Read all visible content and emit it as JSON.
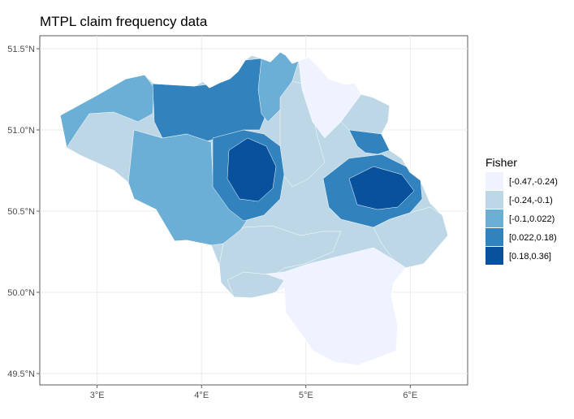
{
  "title": "MTPL claim frequency data",
  "axes": {
    "lon_range": [
      2.45,
      6.55
    ],
    "lat_range": [
      49.43,
      51.58
    ],
    "x_ticks": [
      {
        "value": 3,
        "label": "3°E"
      },
      {
        "value": 4,
        "label": "4°E"
      },
      {
        "value": 5,
        "label": "5°E"
      },
      {
        "value": 6,
        "label": "6°E"
      }
    ],
    "y_ticks": [
      {
        "value": 51.5,
        "label": "51.5°N"
      },
      {
        "value": 51.0,
        "label": "51.0°N"
      },
      {
        "value": 50.5,
        "label": "50.5°N"
      },
      {
        "value": 50.0,
        "label": "50.0°N"
      },
      {
        "value": 49.5,
        "label": "49.5°N"
      }
    ],
    "grid": true,
    "panel_background": "#ffffff",
    "grid_color": "#ebebeb"
  },
  "legend": {
    "title": "Fisher",
    "position": "right",
    "items": [
      {
        "label": "[-0.47,-0.24)",
        "color": "#eff3ff"
      },
      {
        "label": "[-0.24,-0.1)",
        "color": "#bdd7e7"
      },
      {
        "label": "[-0.1,0.022)",
        "color": "#6baed6"
      },
      {
        "label": "[0.022,0.18)",
        "color": "#3182bd"
      },
      {
        "label": "[0.18,0.36]",
        "color": "#08519c"
      }
    ]
  },
  "map": {
    "region": "Belgium",
    "border_color": "#ffffff"
  }
}
